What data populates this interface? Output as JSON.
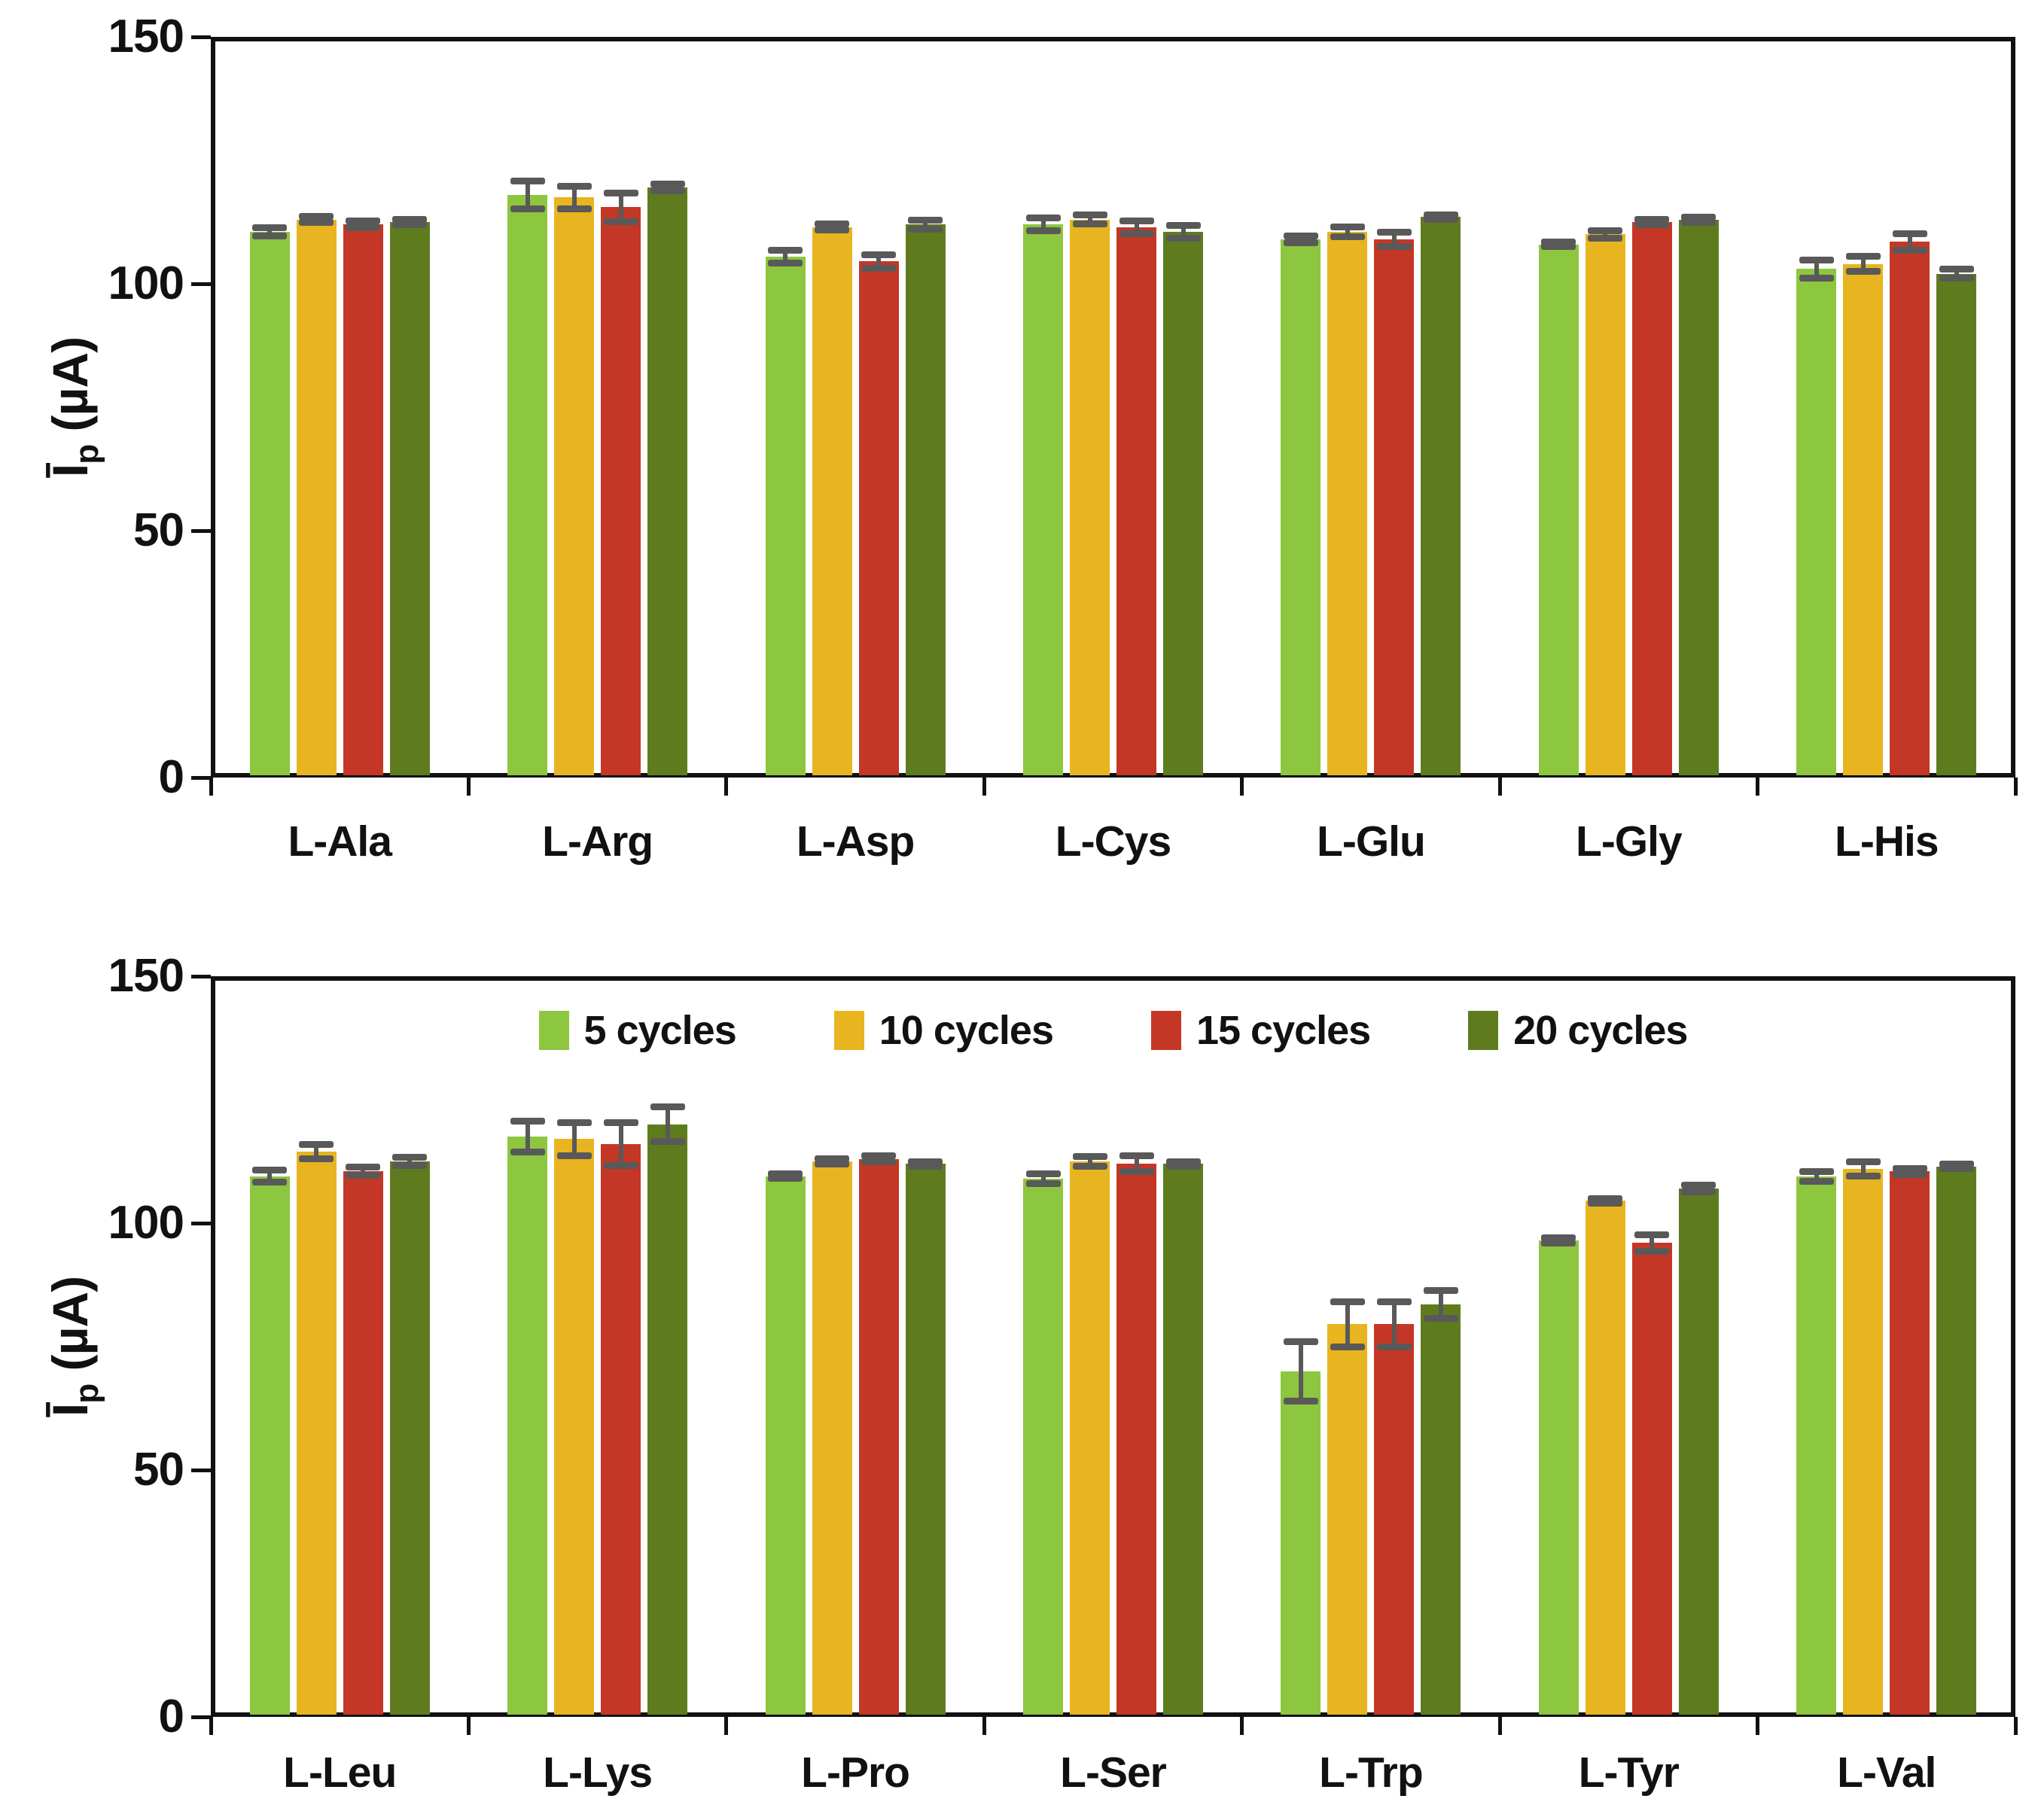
{
  "colors": {
    "series": [
      "#8DC63F",
      "#E8B41F",
      "#C43726",
      "#5E7C1E"
    ],
    "error_bar": "#595959",
    "axis": "#111111"
  },
  "axis": {
    "y_label_main": "Ī",
    "y_label_sub": "p",
    "y_label_unit": " (µA)",
    "y_ticks": [
      0,
      50,
      100,
      150
    ],
    "y_max": 150
  },
  "legend": {
    "items": [
      {
        "label": "5 cycles"
      },
      {
        "label": "10 cycles"
      },
      {
        "label": "15 cycles"
      },
      {
        "label": "20 cycles"
      }
    ]
  },
  "chart_data": [
    {
      "type": "bar",
      "panel": "top",
      "title": "",
      "xlabel": "",
      "ylabel": "Īp (µA)",
      "ylim": [
        0,
        150
      ],
      "grid": false,
      "legend_position": "none",
      "categories": [
        "L-Ala",
        "L-Arg",
        "L-Asp",
        "L-Cys",
        "L-Glu",
        "L-Gly",
        "L-His"
      ],
      "series": [
        {
          "name": "5 cycles",
          "values": [
            110.5,
            118.0,
            105.5,
            112.0,
            109.0,
            108.0,
            103.0
          ],
          "errors": [
            0.8,
            2.8,
            1.3,
            1.3,
            0.7,
            0.5,
            1.8
          ]
        },
        {
          "name": "10 cycles",
          "values": [
            113.0,
            117.5,
            111.5,
            113.0,
            110.5,
            110.0,
            104.0
          ],
          "errors": [
            0.6,
            2.3,
            0.6,
            0.9,
            1.0,
            0.8,
            1.5
          ]
        },
        {
          "name": "15 cycles",
          "values": [
            112.0,
            115.5,
            104.5,
            111.5,
            109.0,
            112.5,
            108.5
          ],
          "errors": [
            0.7,
            2.9,
            1.4,
            1.3,
            1.4,
            0.5,
            1.7
          ]
        },
        {
          "name": "20 cycles",
          "values": [
            112.5,
            119.5,
            112.0,
            110.5,
            113.5,
            113.0,
            102.0
          ],
          "errors": [
            0.6,
            0.7,
            0.9,
            1.3,
            0.5,
            0.5,
            0.9
          ]
        }
      ]
    },
    {
      "type": "bar",
      "panel": "bottom",
      "title": "",
      "xlabel": "",
      "ylabel": "Īp (µA)",
      "ylim": [
        0,
        150
      ],
      "grid": false,
      "legend_position": "top-center",
      "categories": [
        "L-Leu",
        "L-Lys",
        "L-Pro",
        "L-Ser",
        "L-Trp",
        "L-Tyr",
        "L-Val"
      ],
      "series": [
        {
          "name": "5 cycles",
          "values": [
            109.5,
            117.5,
            109.5,
            109.0,
            70.0,
            96.5,
            109.5
          ],
          "errors": [
            1.2,
            3.1,
            0.5,
            1.0,
            6.0,
            0.5,
            1.0
          ]
        },
        {
          "name": "10 cycles",
          "values": [
            114.5,
            117.0,
            112.5,
            112.5,
            79.5,
            104.5,
            111.0
          ],
          "errors": [
            1.5,
            3.3,
            0.5,
            1.0,
            4.5,
            0.5,
            1.5
          ]
        },
        {
          "name": "15 cycles",
          "values": [
            110.5,
            116.0,
            113.0,
            112.0,
            79.5,
            96.0,
            110.5
          ],
          "errors": [
            0.8,
            4.3,
            0.6,
            1.6,
            4.5,
            1.7,
            0.6
          ]
        },
        {
          "name": "20 cycles",
          "values": [
            112.5,
            120.0,
            112.0,
            112.0,
            83.5,
            107.0,
            111.5
          ],
          "errors": [
            0.8,
            3.5,
            0.5,
            0.5,
            2.8,
            0.7,
            0.5
          ]
        }
      ]
    }
  ]
}
